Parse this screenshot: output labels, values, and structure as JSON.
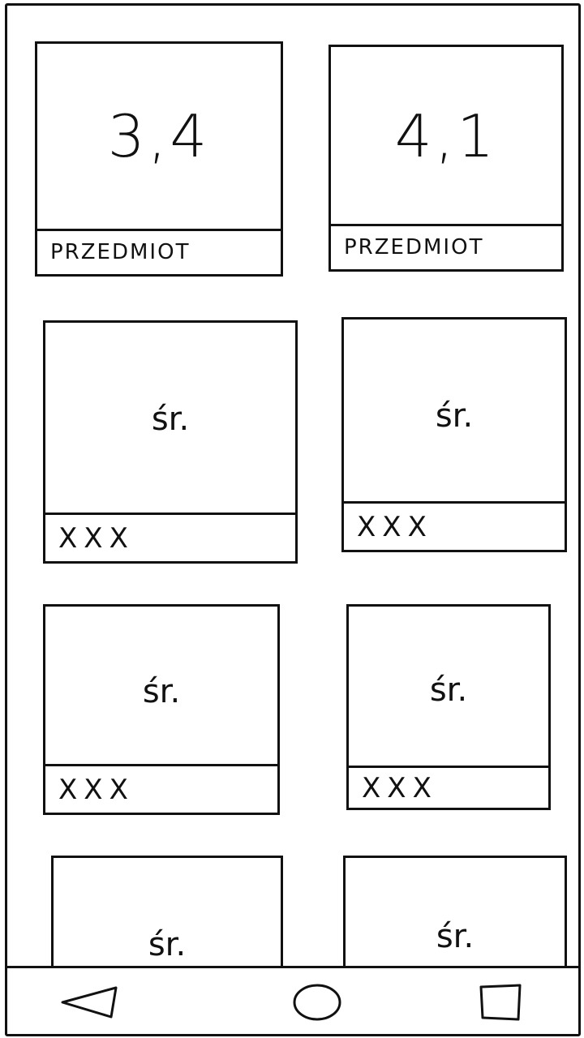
{
  "top_cards": [
    {
      "value": "3,4",
      "label": "PRZEDMIOT"
    },
    {
      "value": "4,1",
      "label": "PRZEDMIOT"
    }
  ],
  "avg_cards": [
    {
      "value": "śr.",
      "label": "XXX"
    },
    {
      "value": "śr.",
      "label": "XXX"
    },
    {
      "value": "śr.",
      "label": "XXX"
    },
    {
      "value": "śr.",
      "label": "XXX"
    },
    {
      "value": "śr.",
      "label": ""
    },
    {
      "value": "śr.",
      "label": ""
    }
  ],
  "nav": {
    "back_icon": "back-triangle-icon",
    "home_icon": "home-circle-icon",
    "recents_icon": "recents-square-icon"
  }
}
